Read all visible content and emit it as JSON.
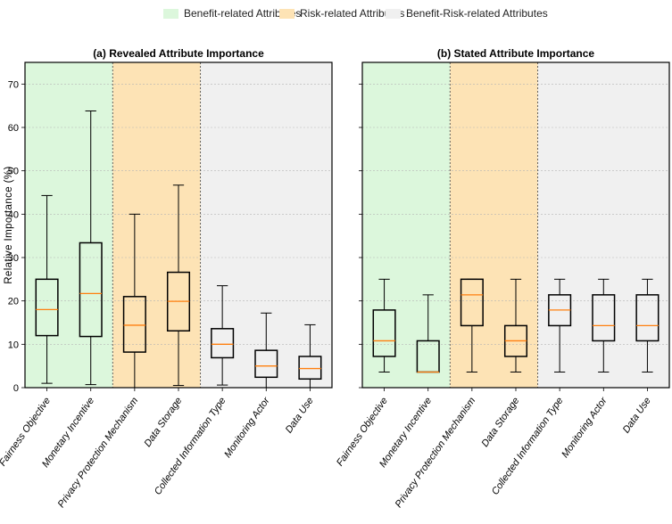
{
  "legend": {
    "items": [
      {
        "label": "Benefit-related Attributes",
        "color": "#dcf7dc"
      },
      {
        "label": "Risk-related Attributes",
        "color": "#fde3b5"
      },
      {
        "label": "Benefit-Risk-related Attributes",
        "color": "#f0f0f0"
      }
    ]
  },
  "chart_data": {
    "type": "boxplot",
    "ylabel": "Relative Importance (%)",
    "ylim": [
      0,
      75
    ],
    "yticks": [
      0,
      10,
      20,
      30,
      40,
      50,
      60,
      70
    ],
    "grid": "horizontal dotted",
    "categories": [
      "Fairness Objective",
      "Monetary Incentive",
      "Privacy Protection Mechanism",
      "Data Storage",
      "Collected Information Type",
      "Monitoring Actor",
      "Data Use"
    ],
    "category_groups": [
      {
        "group": "benefit",
        "categories": [
          "Fairness Objective",
          "Monetary Incentive"
        ],
        "color": "#dcf7dc"
      },
      {
        "group": "risk",
        "categories": [
          "Privacy Protection Mechanism",
          "Data Storage"
        ],
        "color": "#fde3b5"
      },
      {
        "group": "benefit-risk",
        "categories": [
          "Collected Information Type",
          "Monitoring Actor",
          "Data Use"
        ],
        "color": "#f0f0f0"
      }
    ],
    "median_color": "#ff7f0e",
    "panels": [
      {
        "title": "(a) Revealed Attribute Importance",
        "boxes": [
          {
            "whisker_low": 1.0,
            "q1": 12.0,
            "median": 18.0,
            "q3": 25.0,
            "whisker_high": 44.3
          },
          {
            "whisker_low": 0.7,
            "q1": 11.8,
            "median": 21.7,
            "q3": 33.4,
            "whisker_high": 63.8
          },
          {
            "whisker_low": 0.0,
            "q1": 8.2,
            "median": 14.4,
            "q3": 21.0,
            "whisker_high": 40.0
          },
          {
            "whisker_low": 0.5,
            "q1": 13.1,
            "median": 19.9,
            "q3": 26.6,
            "whisker_high": 46.7
          },
          {
            "whisker_low": 0.6,
            "q1": 6.9,
            "median": 10.0,
            "q3": 13.6,
            "whisker_high": 23.5
          },
          {
            "whisker_low": 0.0,
            "q1": 2.4,
            "median": 5.0,
            "q3": 8.6,
            "whisker_high": 17.2
          },
          {
            "whisker_low": 0.0,
            "q1": 2.0,
            "median": 4.4,
            "q3": 7.2,
            "whisker_high": 14.5
          }
        ]
      },
      {
        "title": "(b) Stated Attribute Importance",
        "boxes": [
          {
            "whisker_low": 3.6,
            "q1": 7.2,
            "median": 10.8,
            "q3": 17.9,
            "whisker_high": 25.0
          },
          {
            "whisker_low": 3.6,
            "q1": 3.6,
            "median": 3.6,
            "q3": 10.8,
            "whisker_high": 21.4
          },
          {
            "whisker_low": 3.6,
            "q1": 14.3,
            "median": 21.4,
            "q3": 25.0,
            "whisker_high": 25.0
          },
          {
            "whisker_low": 3.6,
            "q1": 7.2,
            "median": 10.8,
            "q3": 14.3,
            "whisker_high": 25.0
          },
          {
            "whisker_low": 3.6,
            "q1": 14.3,
            "median": 17.9,
            "q3": 21.4,
            "whisker_high": 25.0
          },
          {
            "whisker_low": 3.6,
            "q1": 10.8,
            "median": 14.3,
            "q3": 21.4,
            "whisker_high": 25.0
          },
          {
            "whisker_low": 3.6,
            "q1": 10.8,
            "median": 14.3,
            "q3": 21.4,
            "whisker_high": 25.0
          }
        ]
      }
    ]
  }
}
